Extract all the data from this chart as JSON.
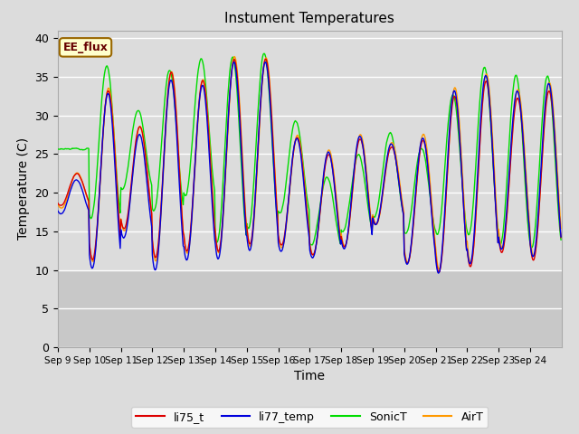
{
  "title": "Instument Temperatures",
  "xlabel": "Time",
  "ylabel": "Temperature (C)",
  "ylim": [
    0,
    41
  ],
  "yticks": [
    0,
    5,
    10,
    15,
    20,
    25,
    30,
    35,
    40
  ],
  "xtick_labels": [
    "Sep 9",
    "Sep 10",
    "Sep 11",
    "Sep 12",
    "Sep 13",
    "Sep 14",
    "Sep 15",
    "Sep 16",
    "Sep 17",
    "Sep 18",
    "Sep 19",
    "Sep 20",
    "Sep 21",
    "Sep 22",
    "Sep 23",
    "Sep 24"
  ],
  "colors": {
    "li75_t": "#dd0000",
    "li77_temp": "#0000dd",
    "SonicT": "#00dd00",
    "AirT": "#ff9900"
  },
  "annotation_text": "EE_flux",
  "annotation_facecolor": "#ffffcc",
  "annotation_edgecolor": "#996600",
  "annotation_textcolor": "#660000",
  "plot_bgcolor": "#dcdcdc",
  "figure_facecolor": "#dcdcdc",
  "lower_band_color": "#c8c8c8",
  "grid_color": "#ffffff"
}
